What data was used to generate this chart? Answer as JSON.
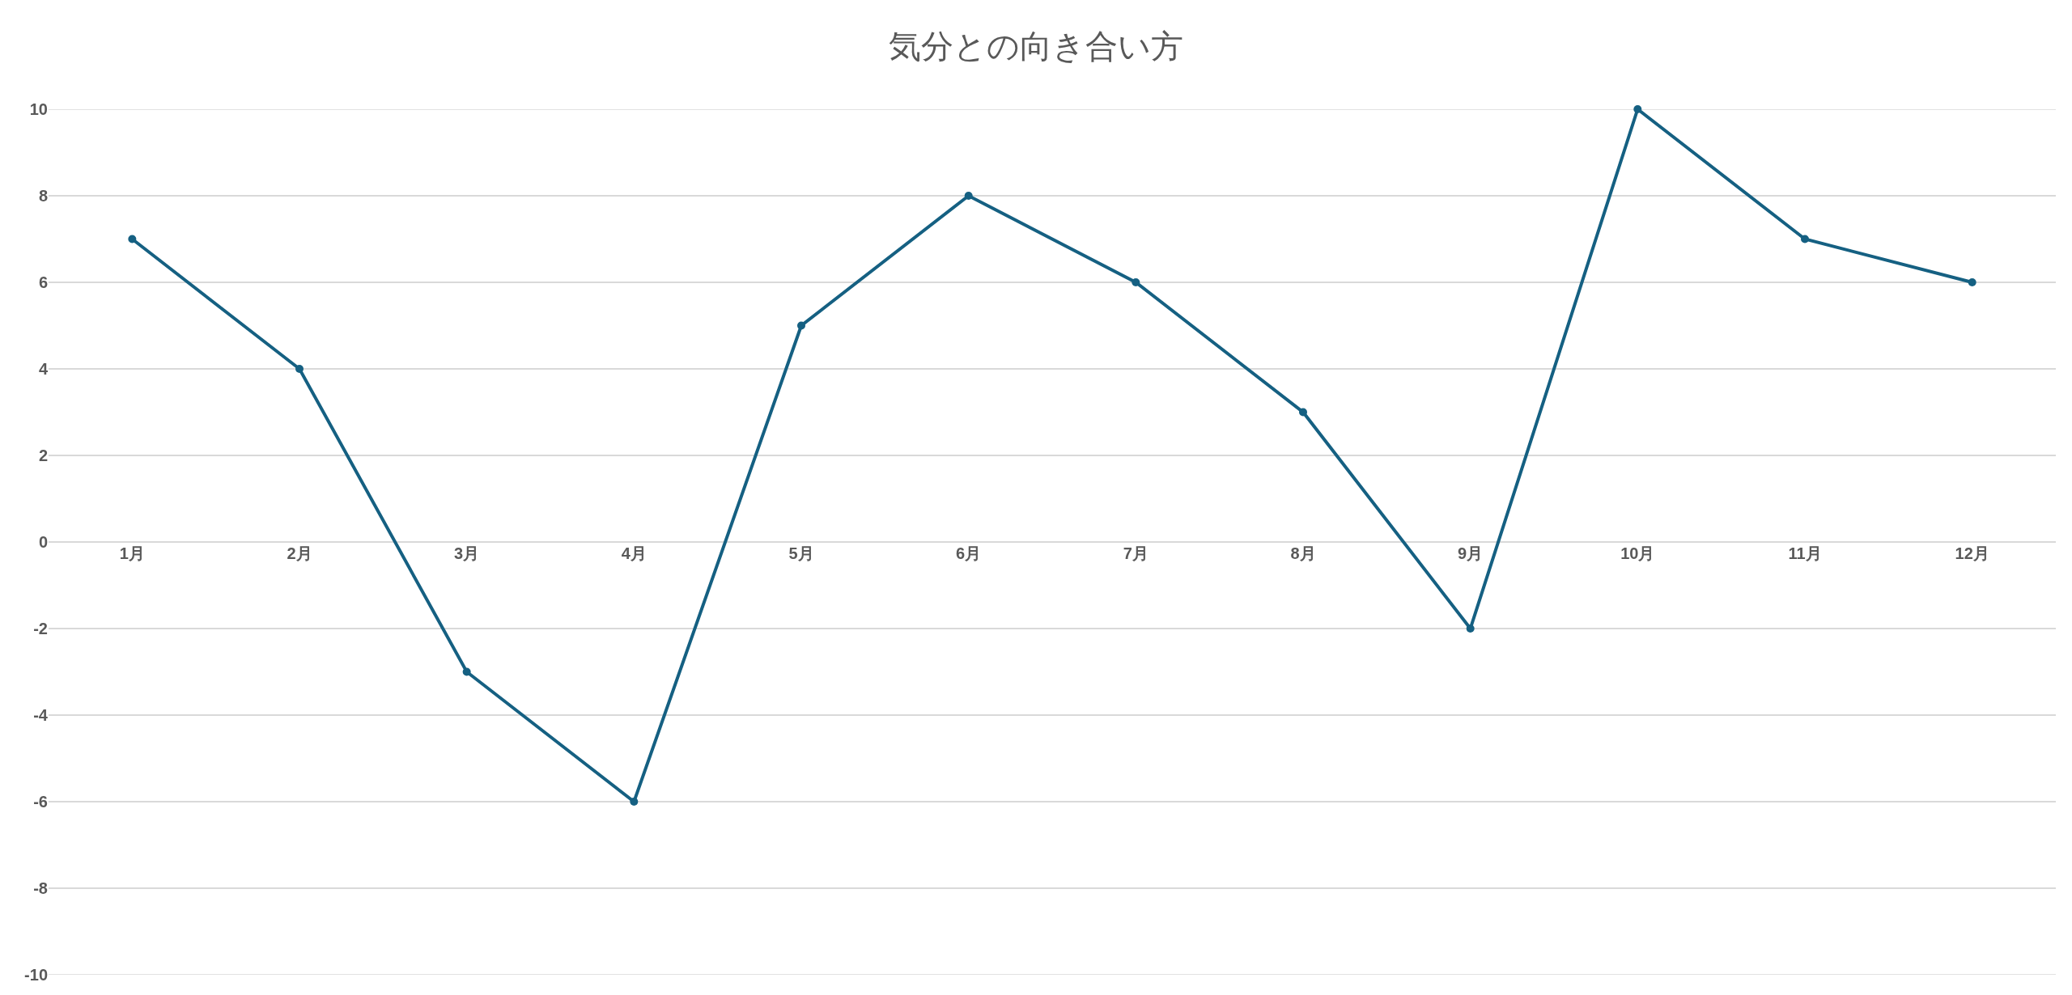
{
  "chart_data": {
    "type": "line",
    "title": "気分との向き合い方",
    "categories": [
      "1月",
      "2月",
      "3月",
      "4月",
      "5月",
      "6月",
      "7月",
      "8月",
      "9月",
      "10月",
      "11月",
      "12月"
    ],
    "series": [
      {
        "color": "#156082",
        "values": [
          7,
          4,
          -3,
          -6,
          5,
          8,
          6,
          3,
          -2,
          10,
          7,
          6
        ]
      }
    ],
    "ylim": [
      -10,
      10
    ],
    "yticks": [
      -10,
      -8,
      -6,
      -4,
      -2,
      0,
      2,
      4,
      6,
      8,
      10
    ],
    "grid": "y",
    "marker": "circle",
    "line_style": "solid"
  }
}
